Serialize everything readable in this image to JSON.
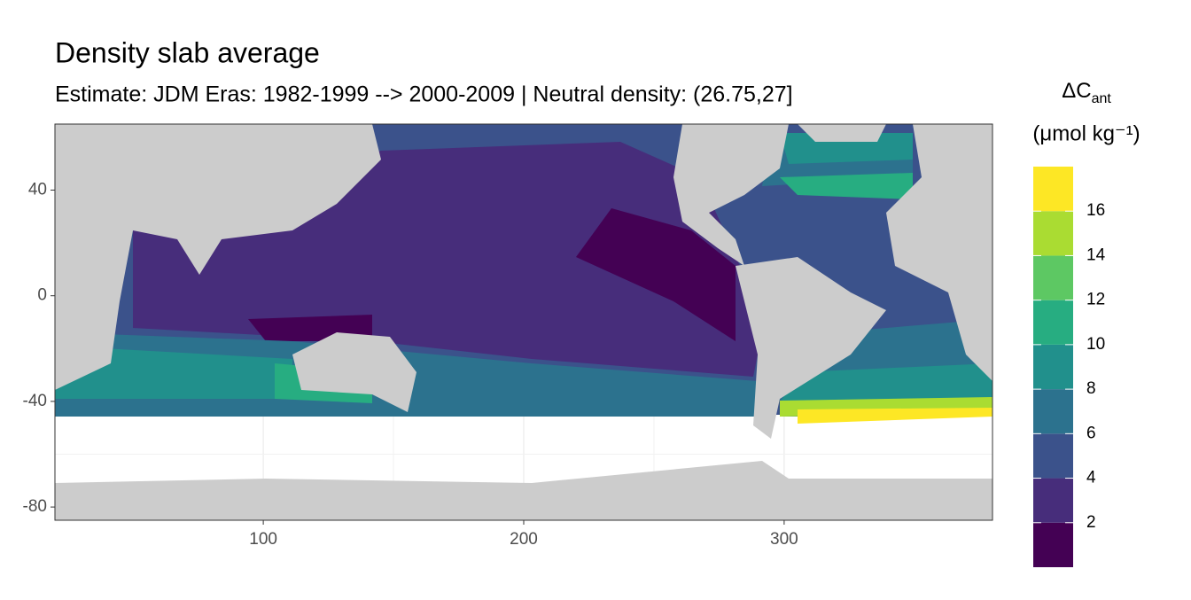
{
  "chart_data": {
    "type": "map",
    "title": "Density slab average",
    "subtitle": "Estimate: JDM Eras: 1982-1999 --> 2000-2009 | Neutral density: (26.75,27]",
    "xlim": [
      20,
      380
    ],
    "ylim": [
      -85,
      65
    ],
    "xticks": [
      100,
      200,
      300
    ],
    "yticks": [
      40,
      0,
      -40,
      -80
    ],
    "grid": true,
    "legend": {
      "title": "ΔC",
      "title_sub": "ant",
      "unit": "(μmol kg⁻¹)",
      "bins": [
        0,
        2,
        4,
        6,
        8,
        10,
        12,
        14,
        16,
        18
      ],
      "colors": [
        "#440154",
        "#472D7B",
        "#3B528B",
        "#2C728E",
        "#21908C",
        "#27AD81",
        "#5DC863",
        "#AADC32",
        "#FDE725"
      ],
      "ticks": [
        2,
        4,
        6,
        8,
        10,
        12,
        14,
        16
      ]
    }
  }
}
